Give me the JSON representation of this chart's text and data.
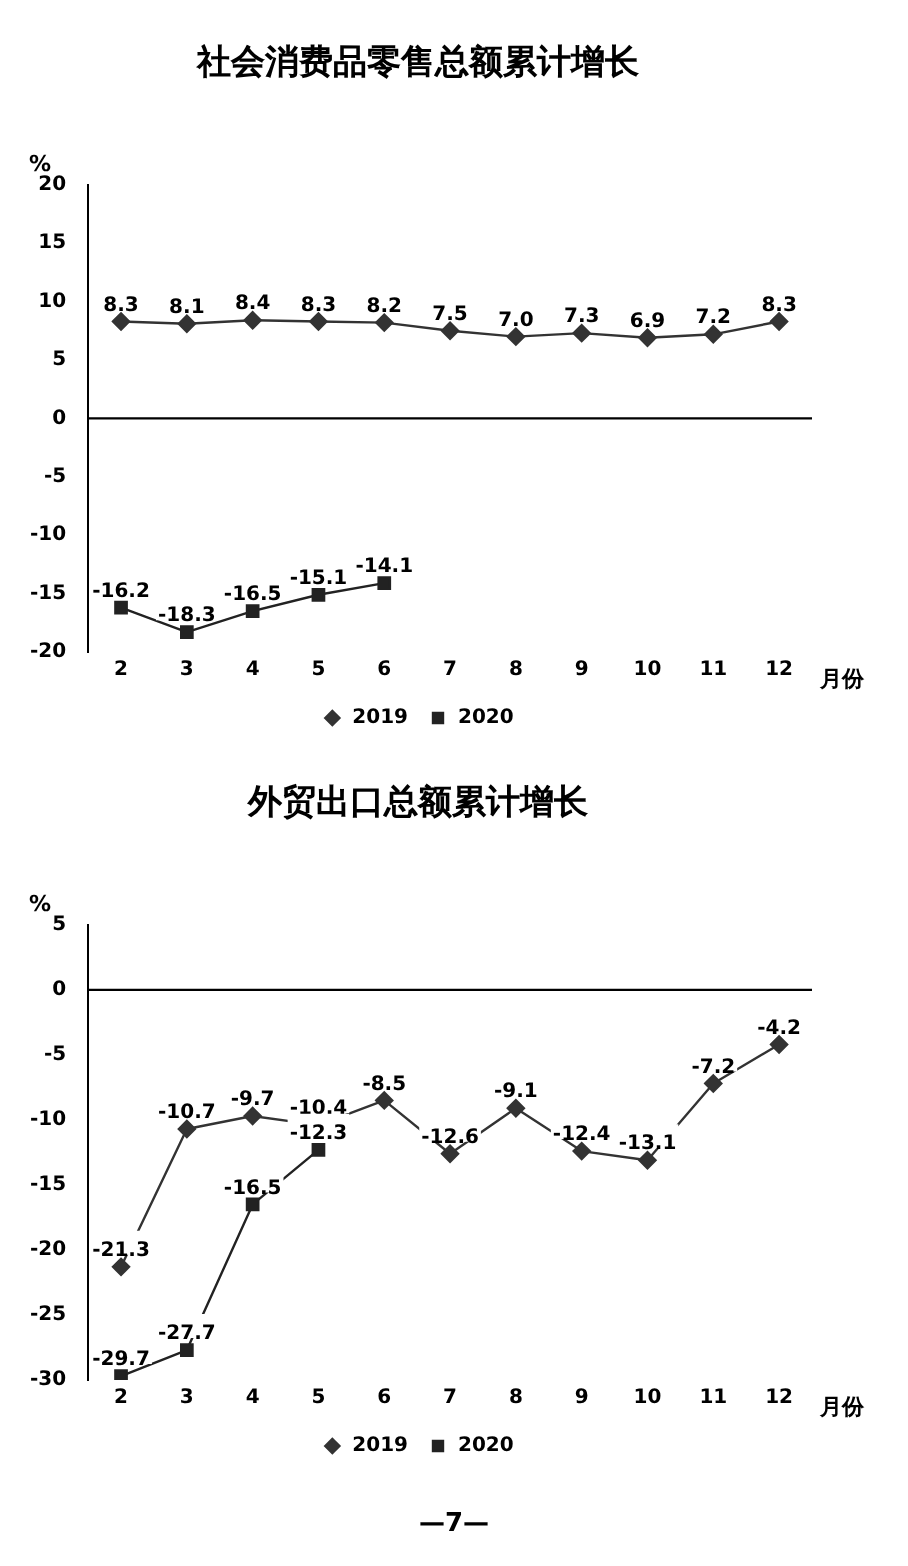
{
  "chart_data": [
    {
      "type": "line",
      "title": "社会消费品零售总额累计增长",
      "ylabel": "%",
      "xlabel": "月份",
      "categories": [
        "2",
        "3",
        "4",
        "5",
        "6",
        "7",
        "8",
        "9",
        "10",
        "11",
        "12"
      ],
      "series": [
        {
          "name": "2019",
          "color": "#333333",
          "marker": "diamond",
          "values": [
            8.3,
            8.1,
            8.4,
            8.3,
            8.2,
            7.5,
            7.0,
            7.3,
            6.9,
            7.2,
            8.3
          ],
          "value_labels": [
            "8.3",
            "8.1",
            "8.4",
            "8.3",
            "8.2",
            "7.5",
            "7.0",
            "7.3",
            "6.9",
            "7.2",
            "8.3"
          ]
        },
        {
          "name": "2020",
          "color": "#222222",
          "marker": "square",
          "values": [
            -16.2,
            -18.3,
            -16.5,
            -15.1,
            -14.1,
            null,
            null,
            null,
            null,
            null,
            null
          ],
          "value_labels": [
            "-16.2",
            "-18.3",
            "-16.5",
            "-15.1",
            "-14.1",
            null,
            null,
            null,
            null,
            null,
            null
          ]
        }
      ],
      "ylim": [
        -20,
        20
      ],
      "yticks": [
        -20,
        -15,
        -10,
        -5,
        0,
        5,
        10,
        15,
        20
      ],
      "ref_lines": [
        {
          "axis": "y",
          "value": 0,
          "color": "#000000"
        }
      ],
      "grid": false,
      "legend": "bottom"
    },
    {
      "type": "line",
      "title": "外贸出口总额累计增长",
      "ylabel": "%",
      "xlabel": "月份",
      "categories": [
        "2",
        "3",
        "4",
        "5",
        "6",
        "7",
        "8",
        "9",
        "10",
        "11",
        "12"
      ],
      "series": [
        {
          "name": "2019",
          "color": "#333333",
          "marker": "diamond",
          "values": [
            -21.3,
            -10.7,
            -9.7,
            -10.4,
            -8.5,
            -12.6,
            -9.1,
            -12.4,
            -13.1,
            -7.2,
            -4.2
          ],
          "value_labels": [
            "-21.3",
            "-10.7",
            "-9.7",
            "-10.4",
            "-8.5",
            "-12.6",
            "-9.1",
            "-12.4",
            "-13.1",
            "-7.2",
            "-4.2"
          ]
        },
        {
          "name": "2020",
          "color": "#222222",
          "marker": "square",
          "values": [
            -29.7,
            -27.7,
            -16.5,
            -12.3,
            null,
            null,
            null,
            null,
            null,
            null,
            null
          ],
          "value_labels": [
            "-29.7",
            "-27.7",
            "-16.5",
            "-12.3",
            null,
            null,
            null,
            null,
            null,
            null,
            null
          ]
        }
      ],
      "ylim": [
        -30,
        5
      ],
      "yticks": [
        -30,
        -25,
        -20,
        -15,
        -10,
        -5,
        0,
        5
      ],
      "ref_lines": [
        {
          "axis": "y",
          "value": 0,
          "color": "#000000"
        }
      ],
      "grid": false,
      "legend": "bottom",
      "annotations": [
        "—7—"
      ]
    }
  ]
}
